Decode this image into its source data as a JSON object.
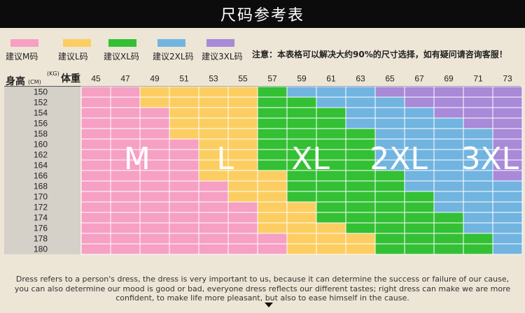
{
  "title": "尺码参考表",
  "legend": [
    {
      "label": "建议M码",
      "color": "#f6a0c4"
    },
    {
      "label": "建议L码",
      "color": "#fcce62"
    },
    {
      "label": "建议XL码",
      "color": "#34c034"
    },
    {
      "label": "建议2XL码",
      "color": "#72b4e0"
    },
    {
      "label": "建议3XL码",
      "color": "#a88ad8"
    }
  ],
  "note": "注意：本表格可以解决大约90%的尺寸选择，如有疑问请咨询客服！",
  "axis": {
    "height_label": "身高",
    "height_unit": "(CM)",
    "weight_label": "体重",
    "weight_unit": "(KG)"
  },
  "chart_data": {
    "type": "heatmap",
    "title": "尺码参考表",
    "x_label": "体重",
    "x_unit": "(KG)",
    "y_label": "身高",
    "y_unit": "(CM)",
    "x": [
      45,
      47,
      49,
      51,
      53,
      55,
      57,
      59,
      61,
      63,
      65,
      67,
      69,
      71,
      73
    ],
    "y": [
      150,
      152,
      154,
      156,
      158,
      160,
      162,
      164,
      166,
      168,
      170,
      172,
      174,
      176,
      178,
      180
    ],
    "size_names": [
      "M",
      "L",
      "XL",
      "2XL",
      "3XL"
    ],
    "size_colors": [
      "#f6a0c4",
      "#fcce62",
      "#34c034",
      "#72b4e0",
      "#a88ad8"
    ],
    "cells": [
      [
        0,
        0,
        1,
        1,
        1,
        1,
        2,
        3,
        3,
        3,
        4,
        4,
        4,
        4,
        4
      ],
      [
        0,
        0,
        1,
        1,
        1,
        1,
        2,
        2,
        3,
        3,
        3,
        4,
        4,
        4,
        4
      ],
      [
        0,
        0,
        0,
        1,
        1,
        1,
        2,
        2,
        2,
        3,
        3,
        3,
        4,
        4,
        4
      ],
      [
        0,
        0,
        0,
        1,
        1,
        1,
        2,
        2,
        2,
        3,
        3,
        3,
        3,
        4,
        4
      ],
      [
        0,
        0,
        0,
        1,
        1,
        1,
        2,
        2,
        2,
        2,
        3,
        3,
        3,
        3,
        4
      ],
      [
        0,
        0,
        0,
        0,
        1,
        1,
        2,
        2,
        2,
        2,
        3,
        3,
        3,
        3,
        4
      ],
      [
        0,
        0,
        0,
        0,
        1,
        1,
        2,
        2,
        2,
        2,
        3,
        3,
        3,
        3,
        4
      ],
      [
        0,
        0,
        0,
        0,
        1,
        1,
        2,
        2,
        2,
        2,
        3,
        3,
        3,
        3,
        4
      ],
      [
        0,
        0,
        0,
        0,
        1,
        1,
        1,
        2,
        2,
        2,
        2,
        3,
        3,
        3,
        4
      ],
      [
        0,
        0,
        0,
        0,
        0,
        1,
        1,
        2,
        2,
        2,
        2,
        3,
        3,
        3,
        3
      ],
      [
        0,
        0,
        0,
        0,
        0,
        1,
        1,
        2,
        2,
        2,
        2,
        2,
        3,
        3,
        3
      ],
      [
        0,
        0,
        0,
        0,
        0,
        0,
        1,
        1,
        2,
        2,
        2,
        2,
        3,
        3,
        3
      ],
      [
        0,
        0,
        0,
        0,
        0,
        0,
        1,
        1,
        2,
        2,
        2,
        2,
        2,
        3,
        3
      ],
      [
        0,
        0,
        0,
        0,
        0,
        0,
        1,
        1,
        1,
        2,
        2,
        2,
        2,
        3,
        3
      ],
      [
        0,
        0,
        0,
        0,
        0,
        0,
        0,
        1,
        1,
        1,
        2,
        2,
        2,
        2,
        3
      ],
      [
        0,
        0,
        0,
        0,
        0,
        0,
        0,
        1,
        1,
        1,
        2,
        2,
        2,
        2,
        3
      ]
    ],
    "region_labels": [
      "M",
      "L",
      "XL",
      "2XL",
      "3XL"
    ]
  },
  "footer": {
    "line1": "Dress refers to a person's dress, the dress is very important to us, because it can determine the success or failure of our cause,",
    "line2": "you can also determine our mood is good or bad, everyone dress reflects our different tastes; right dress can make we are more",
    "line3": "confident, to make life more pleasant, but also to ease himself in the cause."
  }
}
